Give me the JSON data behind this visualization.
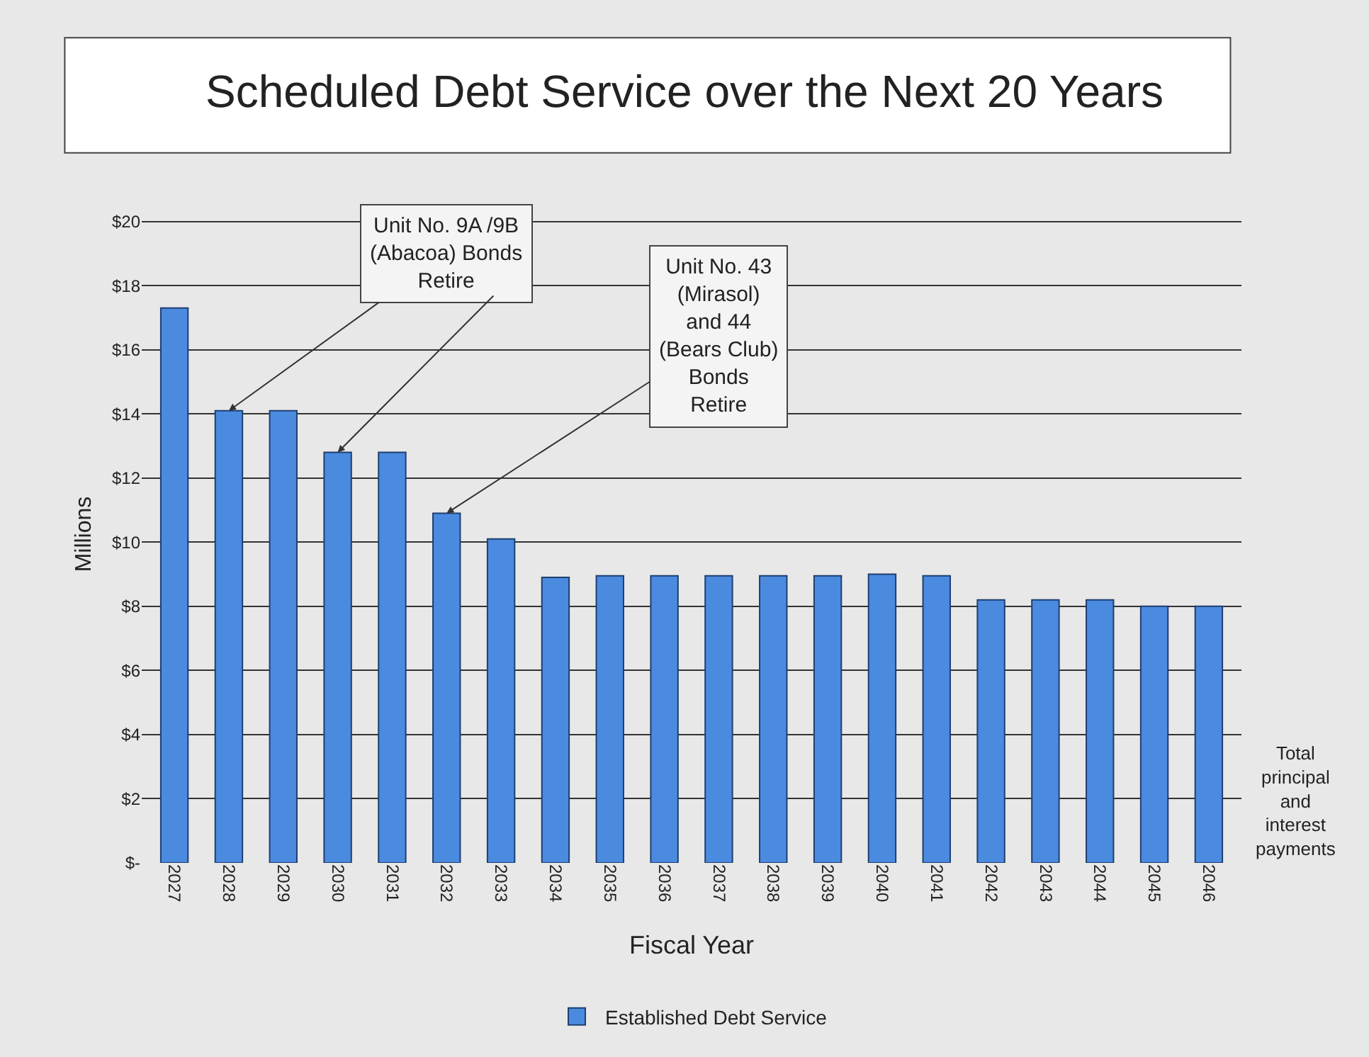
{
  "chart_data": {
    "type": "bar",
    "title": "Scheduled Debt Service over the Next 20 Years",
    "xlabel": "Fiscal Year",
    "ylabel": "Millions",
    "categories": [
      "2027",
      "2028",
      "2029",
      "2030",
      "2031",
      "2032",
      "2033",
      "2034",
      "2035",
      "2036",
      "2037",
      "2038",
      "2039",
      "2040",
      "2041",
      "2042",
      "2043",
      "2044",
      "2045",
      "2046"
    ],
    "series": [
      {
        "name": "Established Debt Service",
        "color": "#4a8be0",
        "values": [
          17.3,
          14.1,
          14.1,
          12.8,
          12.8,
          10.9,
          10.1,
          8.9,
          8.95,
          8.95,
          8.95,
          8.95,
          8.95,
          9.0,
          8.95,
          8.2,
          8.2,
          8.2,
          8.0,
          8.0
        ]
      }
    ],
    "ylim": [
      0,
      20.5
    ],
    "yticks": [
      {
        "value": 0,
        "label": "$-"
      },
      {
        "value": 2,
        "label": "$2"
      },
      {
        "value": 4,
        "label": "$4"
      },
      {
        "value": 6,
        "label": "$6"
      },
      {
        "value": 8,
        "label": "$8"
      },
      {
        "value": 10,
        "label": "$10"
      },
      {
        "value": 12,
        "label": "$12"
      },
      {
        "value": 14,
        "label": "$14"
      },
      {
        "value": 16,
        "label": "$16"
      },
      {
        "value": 18,
        "label": "$18"
      },
      {
        "value": 20,
        "label": "$20"
      }
    ],
    "grid": "y",
    "legend": "bottom",
    "annotations": [
      {
        "text": "Unit No. 9A /9B\n(Abacoa) Bonds\nRetire",
        "x": "2028",
        "y": 14.1
      },
      {
        "text": "Unit No. 43\n(Mirasol)\nand 44\n(Bears Club)\nBonds\nRetire",
        "x": "2032",
        "y": 10.9
      },
      "Total\nprincipal\nand\ninterest\npayments"
    ]
  }
}
